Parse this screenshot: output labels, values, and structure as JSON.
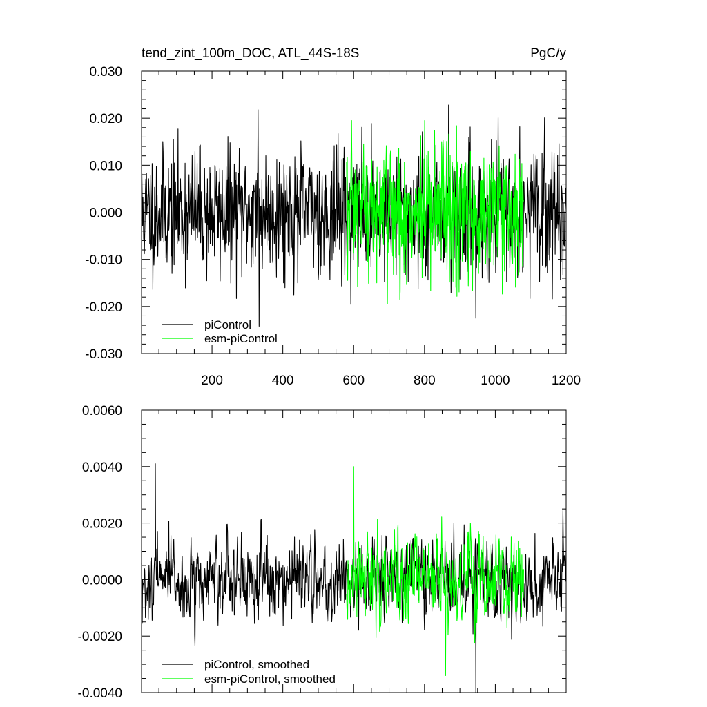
{
  "chart_data": [
    {
      "type": "line",
      "title": "tend_zint_100m_DOC, ATL_44S-18S",
      "units": "PgC/y",
      "xlim": [
        1,
        1200
      ],
      "ylim": [
        -0.03,
        0.03
      ],
      "x_ticks": [
        200,
        400,
        600,
        800,
        1000,
        1200
      ],
      "x_tick_labels": [
        "200",
        "400",
        "600",
        "800",
        "1000",
        "1200"
      ],
      "y_ticks": [
        -0.03,
        -0.02,
        -0.01,
        0.0,
        0.01,
        0.02,
        0.03
      ],
      "y_tick_labels": [
        "-0.030",
        "-0.020",
        "-0.010",
        "0.000",
        "0.010",
        "0.020",
        "0.030"
      ],
      "legend": {
        "placement": "bottom-left"
      },
      "series": [
        {
          "name": "piControl",
          "color": "#000000",
          "x_range": [
            1,
            1200
          ],
          "n_points": 1200,
          "mean": 0.0,
          "amplitude": 0.0065,
          "extremes": [
            [
              330,
              0.0218
            ],
            [
              868,
              0.0228
            ],
            [
              333,
              -0.0242
            ],
            [
              945,
              -0.0225
            ]
          ]
        },
        {
          "name": "esm-piControl",
          "color": "#00ff00",
          "x_range": [
            580,
            1080
          ],
          "n_points": 500,
          "mean": 0.0,
          "amplitude": 0.0075,
          "extremes": [
            [
              800,
              0.0195
            ],
            [
              730,
              -0.0185
            ]
          ]
        }
      ]
    },
    {
      "type": "line",
      "xlim": [
        1,
        1200
      ],
      "ylim": [
        -0.004,
        0.006
      ],
      "x_ticks": [
        200,
        400,
        600,
        800,
        1000,
        1200
      ],
      "y_ticks": [
        -0.004,
        -0.002,
        0.0,
        0.002,
        0.004,
        0.006
      ],
      "y_tick_labels": [
        "-0.0040",
        "-0.0020",
        "0.0000",
        "0.0020",
        "0.0040",
        "0.0060"
      ],
      "legend": {
        "placement": "bottom-left"
      },
      "series": [
        {
          "name": "piControl, smoothed",
          "color": "#000000",
          "x_range": [
            1,
            1200
          ],
          "n_points": 1200,
          "mean": 0.0,
          "amplitude": 0.0012,
          "extremes": [
            [
              40,
              0.0041
            ],
            [
              945,
              -0.004
            ]
          ]
        },
        {
          "name": "esm-piControl, smoothed",
          "color": "#00ff00",
          "x_range": [
            580,
            1080
          ],
          "n_points": 500,
          "mean": 0.0,
          "amplitude": 0.0013,
          "extremes": [
            [
              600,
              0.004
            ],
            [
              860,
              -0.0034
            ]
          ]
        }
      ]
    }
  ]
}
